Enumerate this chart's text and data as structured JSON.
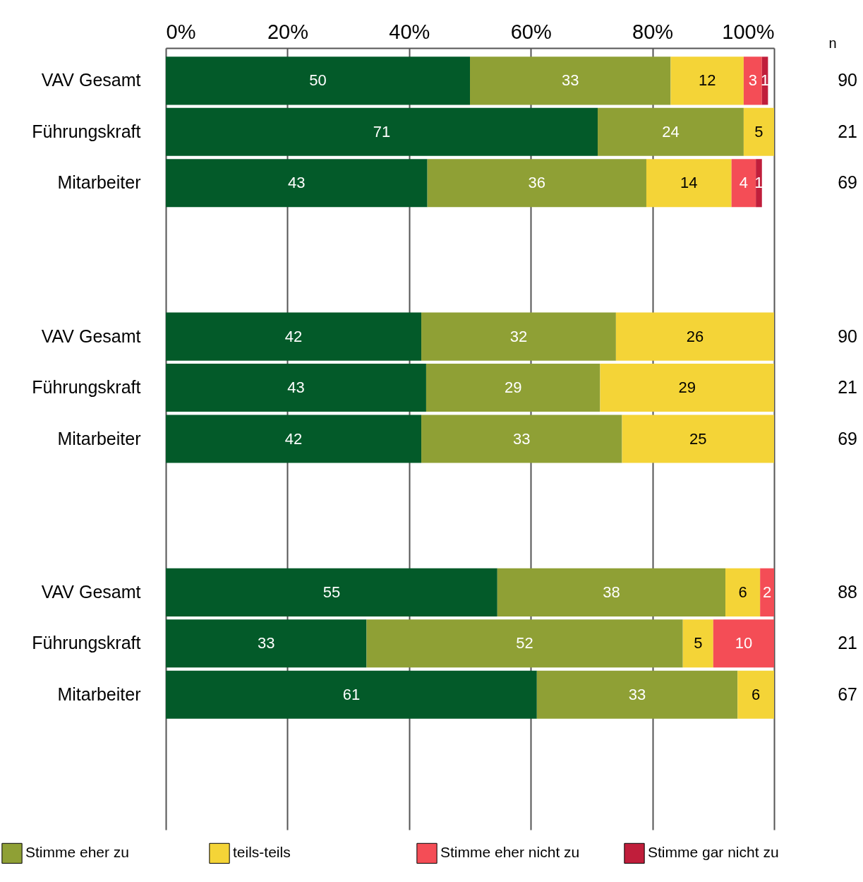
{
  "chart_data": {
    "type": "bar",
    "orientation": "horizontal",
    "stacked": true,
    "grid": "x",
    "legend": "bottom left",
    "categories": [
      "VAV Gesamt",
      "Führungskraft",
      "Mitarbeiter",
      null,
      null,
      "VAV Gesamt",
      "Führungskraft",
      "Mitarbeiter",
      null,
      null,
      "VAV Gesamt",
      "Führungskraft",
      "Mitarbeiter",
      null,
      null
    ],
    "xlim": [
      0,
      100
    ],
    "xticks": [
      {
        "value": 0,
        "label": "0%"
      },
      {
        "value": 20,
        "label": "20%"
      },
      {
        "value": 40,
        "label": "40%"
      },
      {
        "value": 60,
        "label": "60%"
      },
      {
        "value": 80,
        "label": "80%"
      },
      {
        "value": 100,
        "label": "100%"
      }
    ],
    "annotations": [
      "n",
      "90",
      "21",
      "69",
      "90",
      "21",
      "69",
      "88",
      "21",
      "67"
    ],
    "series": [
      {
        "color": "#035a29",
        "values": [
          50,
          71,
          43,
          null,
          null,
          42,
          42.8,
          42,
          null,
          null,
          54.5,
          33,
          61,
          null,
          null
        ],
        "value_labels": [
          "50",
          "71",
          "43",
          null,
          null,
          "42",
          "43",
          "42",
          null,
          null,
          "55",
          "33",
          "61",
          null,
          null
        ]
      },
      {
        "name": "Stimme eher zu",
        "color": "#8fa035",
        "values": [
          33,
          24,
          36,
          null,
          null,
          32,
          28.6,
          33,
          null,
          null,
          37.5,
          52,
          33,
          null,
          null
        ],
        "value_labels": [
          "33",
          "24",
          "36",
          null,
          null,
          "32",
          "29",
          "33",
          null,
          null,
          "38",
          "52",
          "33",
          null,
          null
        ]
      },
      {
        "name": "teils-teils",
        "color": "#f4d437",
        "values": [
          12,
          5,
          14,
          null,
          null,
          26,
          28.6,
          25,
          null,
          null,
          5.7,
          5,
          6,
          null,
          null
        ],
        "value_labels": [
          "12",
          "5",
          "14",
          null,
          null,
          "26",
          "29",
          "25",
          null,
          null,
          "6",
          "5",
          "6",
          null,
          null
        ]
      },
      {
        "name": "Stimme eher nicht zu",
        "color": "#f44d56",
        "values": [
          3,
          null,
          4,
          null,
          null,
          null,
          null,
          null,
          null,
          null,
          2.3,
          10,
          null,
          null,
          null
        ],
        "value_labels": [
          "3",
          null,
          "4",
          null,
          null,
          null,
          null,
          null,
          null,
          null,
          "2",
          "10",
          null,
          null,
          null
        ]
      },
      {
        "name": "Stimme gar nicht zu",
        "color": "#c01e3b",
        "values": [
          1,
          null,
          1,
          null,
          null,
          null,
          null,
          null,
          null,
          null,
          null,
          null,
          null,
          null,
          null
        ],
        "value_labels": [
          "1",
          null,
          "1",
          null,
          null,
          null,
          null,
          null,
          null,
          null,
          null,
          null,
          null,
          null,
          null
        ]
      }
    ]
  }
}
